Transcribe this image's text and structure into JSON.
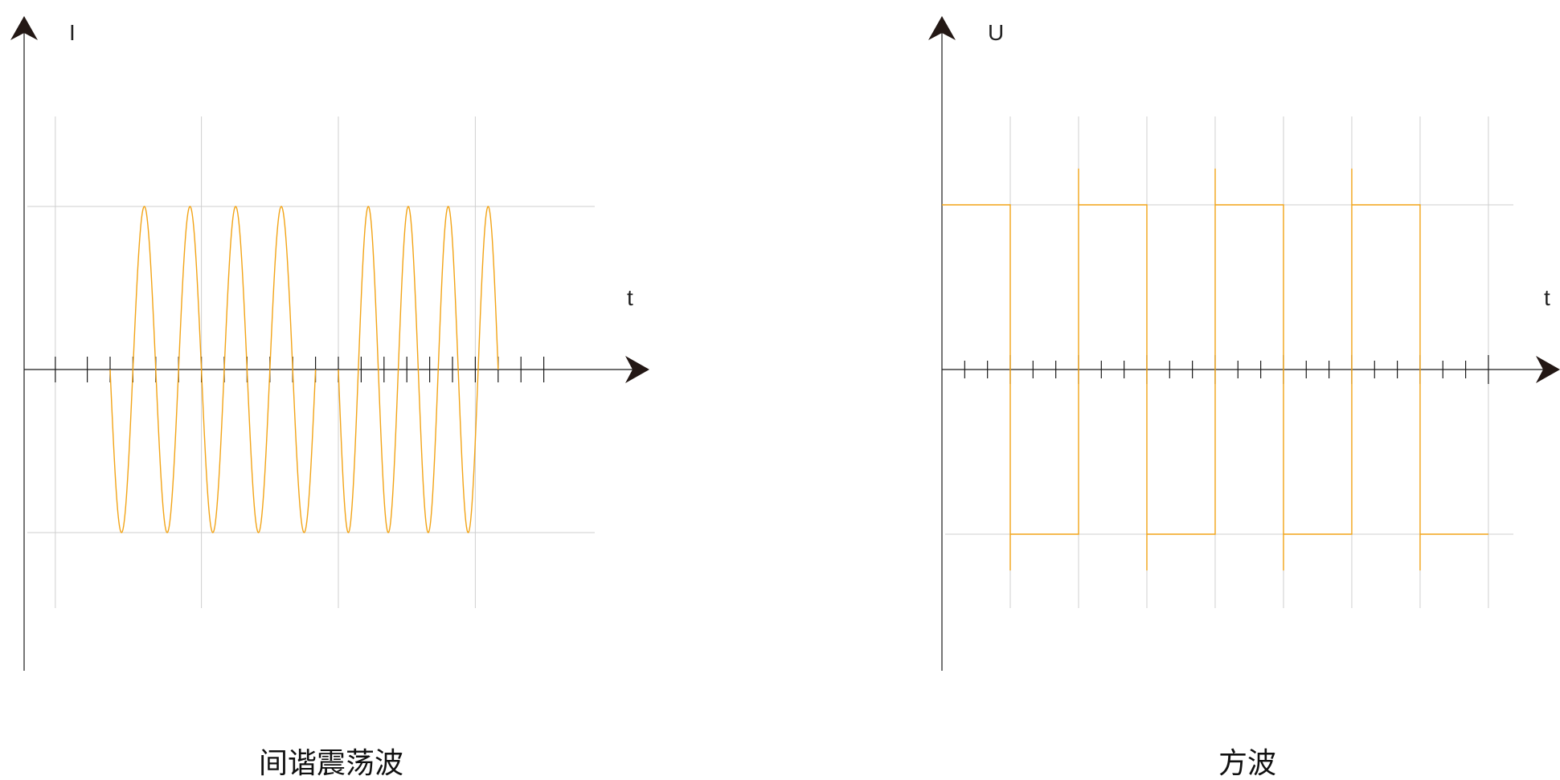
{
  "colors": {
    "wave": "#F2A417",
    "axis": "#1a1a1a",
    "grid": "#cfcfcf",
    "background": "#ffffff"
  },
  "left_panel": {
    "y_label": "I",
    "x_label": "t",
    "caption": "间谐震荡波",
    "chart_data": {
      "type": "line",
      "wave_shape": "interharmonic oscillation (sine bursts)",
      "amplitude": 1,
      "burst1": {
        "t_start": 1,
        "t_end": 10,
        "cycles": 4.5,
        "phase": "starts at 0 going negative"
      },
      "burst2": {
        "t_start": 11,
        "t_end": 18,
        "cycles": 4,
        "phase": "starts at 0 going negative"
      },
      "t_range": [
        -1.4,
        25
      ],
      "y_range": [
        -1.8,
        2.0
      ],
      "tick_count_t": 22,
      "grid": true
    }
  },
  "right_panel": {
    "y_label": "U",
    "x_label": "t",
    "caption": "方波",
    "chart_data": {
      "type": "line",
      "wave_shape": "square",
      "amplitude": 1,
      "levels": [
        1,
        -1,
        1,
        -1,
        1,
        -1,
        1,
        -1
      ],
      "transition_t": [
        3,
        6,
        9,
        12,
        15,
        18,
        21
      ],
      "t_range": [
        0,
        27.3
      ],
      "y_range": [
        -1.8,
        2.0
      ],
      "tick_count_t": 25,
      "grid": true
    }
  }
}
